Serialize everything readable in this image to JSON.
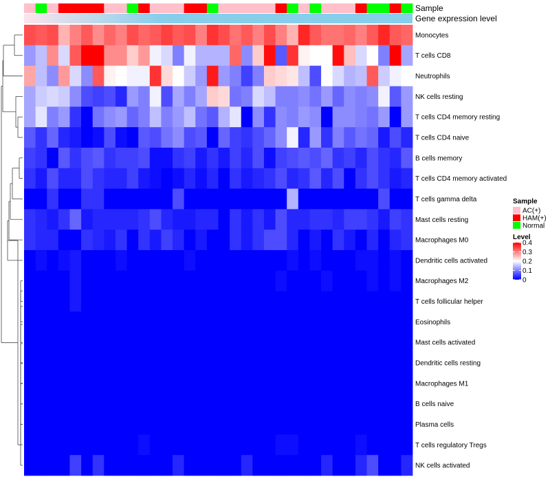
{
  "chart_data": {
    "type": "heatmap",
    "title": "",
    "annotation_tracks": [
      {
        "name": "Sample",
        "values": [
          "AC(+)",
          "Normal",
          "AC(+)",
          "HAM(+)",
          "HAM(+)",
          "HAM(+)",
          "HAM(+)",
          "AC(+)",
          "AC(+)",
          "Normal",
          "HAM(+)",
          "AC(+)",
          "AC(+)",
          "AC(+)",
          "HAM(+)",
          "HAM(+)",
          "Normal",
          "AC(+)",
          "AC(+)",
          "AC(+)",
          "AC(+)",
          "AC(+)",
          "HAM(+)",
          "Normal",
          "AC(+)",
          "Normal",
          "AC(+)",
          "AC(+)",
          "AC(+)",
          "HAM(+)",
          "Normal",
          "Normal",
          "HAM(+)",
          "Normal"
        ]
      },
      {
        "name": "Gene expression level",
        "gradient": [
          "#fce4ec",
          "#87ceeb"
        ]
      }
    ],
    "rows": [
      "Monocytes",
      "T cells CD8",
      "Neutrophils",
      "NK cells resting",
      "T cells CD4 memory resting",
      "T cells CD4 naive",
      "B cells memory",
      "T cells CD4 memory activated",
      "T cells gamma delta",
      "Mast cells resting",
      "Macrophages M0",
      "Dendritic cells activated",
      "Macrophages M2",
      "T cells follicular helper",
      "Eosinophils",
      "Mast cells activated",
      "Dendritic cells resting",
      "Macrophages M1",
      "B cells naive",
      "Plasma cells",
      "T cells regulatory  Tregs",
      "NK cells activated"
    ],
    "values": [
      [
        0.34,
        0.33,
        0.34,
        0.26,
        0.3,
        0.33,
        0.29,
        0.32,
        0.3,
        0.34,
        0.32,
        0.33,
        0.35,
        0.33,
        0.34,
        0.3,
        0.36,
        0.34,
        0.31,
        0.33,
        0.3,
        0.34,
        0.3,
        0.26,
        0.37,
        0.33,
        0.31,
        0.31,
        0.32,
        0.3,
        0.33,
        0.37,
        0.33,
        0.32
      ],
      [
        0.12,
        0.15,
        0.29,
        0.17,
        0.33,
        0.4,
        0.4,
        0.29,
        0.29,
        0.24,
        0.28,
        0.19,
        0.17,
        0.1,
        0.19,
        0.14,
        0.14,
        0.14,
        0.32,
        0.11,
        0.24,
        0.39,
        0.07,
        0.36,
        0.21,
        0.2,
        0.2,
        0.39,
        0.25,
        0.17,
        0.2,
        0.1,
        0.4,
        0.13
      ],
      [
        0.27,
        0.15,
        0.11,
        0.28,
        0.17,
        0.11,
        0.33,
        0.21,
        0.2,
        0.19,
        0.19,
        0.36,
        0.23,
        0.2,
        0.16,
        0.12,
        0.38,
        0.12,
        0.1,
        0.05,
        0.1,
        0.24,
        0.23,
        0.22,
        0.15,
        0.06,
        0.2,
        0.17,
        0.14,
        0.15,
        0.33,
        0.16,
        0.19,
        0.2
      ],
      [
        0.13,
        0.16,
        0.17,
        0.16,
        0.11,
        0.06,
        0.05,
        0.06,
        0.03,
        0.12,
        0.1,
        0.19,
        0.06,
        0.13,
        0.1,
        0.13,
        0.24,
        0.23,
        0.09,
        0.1,
        0.17,
        0.15,
        0.1,
        0.1,
        0.11,
        0.09,
        0.12,
        0.08,
        0.11,
        0.1,
        0.11,
        0.19,
        0.07,
        0.12
      ],
      [
        0.13,
        0.18,
        0.1,
        0.12,
        0.04,
        0.0,
        0.09,
        0.11,
        0.12,
        0.08,
        0.1,
        0.15,
        0.1,
        0.12,
        0.15,
        0.09,
        0.07,
        0.14,
        0.18,
        0.0,
        0.11,
        0.04,
        0.11,
        0.1,
        0.12,
        0.11,
        0.0,
        0.11,
        0.11,
        0.1,
        0.09,
        0.12,
        0.0,
        0.12
      ],
      [
        0.07,
        0.04,
        0.08,
        0.03,
        0.02,
        0.0,
        0.01,
        0.06,
        0.01,
        0.0,
        0.07,
        0.06,
        0.09,
        0.11,
        0.06,
        0.07,
        0.0,
        0.08,
        0.05,
        0.04,
        0.06,
        0.08,
        0.11,
        0.19,
        0.03,
        0.12,
        0.04,
        0.1,
        0.07,
        0.09,
        0.08,
        0.02,
        0.06,
        0.03
      ],
      [
        0.05,
        0.04,
        0.0,
        0.07,
        0.04,
        0.06,
        0.07,
        0.04,
        0.05,
        0.05,
        0.06,
        0.01,
        0.01,
        0.04,
        0.05,
        0.02,
        0.04,
        0.02,
        0.05,
        0.03,
        0.06,
        0.01,
        0.05,
        0.06,
        0.07,
        0.06,
        0.08,
        0.04,
        0.05,
        0.03,
        0.06,
        0.04,
        0.03,
        0.07
      ],
      [
        0.04,
        0.02,
        0.06,
        0.03,
        0.03,
        0.06,
        0.04,
        0.03,
        0.03,
        0.05,
        0.02,
        0.01,
        0.0,
        0.01,
        0.03,
        0.01,
        0.03,
        0.0,
        0.04,
        0.02,
        0.03,
        0.04,
        0.06,
        0.03,
        0.04,
        0.07,
        0.03,
        0.06,
        0.0,
        0.04,
        0.06,
        0.04,
        0.02,
        0.03
      ],
      [
        0.0,
        0.0,
        0.04,
        0.0,
        0.0,
        0.04,
        0.04,
        0.0,
        0.0,
        0.0,
        0.0,
        0.0,
        0.0,
        0.06,
        0.0,
        0.0,
        0.0,
        0.0,
        0.0,
        0.0,
        0.0,
        0.0,
        0.0,
        0.14,
        0.0,
        0.0,
        0.0,
        0.0,
        0.0,
        0.0,
        0.0,
        0.06,
        0.0,
        0.0
      ],
      [
        0.04,
        0.03,
        0.02,
        0.04,
        0.08,
        0.02,
        0.03,
        0.03,
        0.03,
        0.03,
        0.04,
        0.06,
        0.03,
        0.02,
        0.02,
        0.03,
        0.03,
        0.0,
        0.04,
        0.02,
        0.04,
        0.02,
        0.06,
        0.03,
        0.03,
        0.04,
        0.04,
        0.03,
        0.05,
        0.05,
        0.04,
        0.02,
        0.05,
        0.04
      ],
      [
        0.04,
        0.03,
        0.03,
        0.0,
        0.0,
        0.04,
        0.03,
        0.02,
        0.04,
        0.0,
        0.04,
        0.02,
        0.05,
        0.03,
        0.0,
        0.02,
        0.0,
        0.0,
        0.04,
        0.02,
        0.04,
        0.06,
        0.06,
        0.03,
        0.0,
        0.02,
        0.0,
        0.04,
        0.02,
        0.0,
        0.03,
        0.0,
        0.03,
        0.04
      ],
      [
        0.0,
        0.01,
        0.0,
        0.01,
        0.02,
        0.0,
        0.0,
        0.0,
        0.01,
        0.0,
        0.0,
        0.0,
        0.0,
        0.0,
        0.01,
        0.0,
        0.0,
        0.0,
        0.0,
        0.0,
        0.0,
        0.0,
        0.0,
        0.01,
        0.0,
        0.01,
        0.0,
        0.0,
        0.0,
        0.01,
        0.01,
        0.0,
        0.01,
        0.0
      ],
      [
        0.0,
        0.0,
        0.0,
        0.0,
        0.02,
        0.0,
        0.0,
        0.0,
        0.0,
        0.0,
        0.0,
        0.0,
        0.0,
        0.0,
        0.0,
        0.0,
        0.0,
        0.0,
        0.0,
        0.0,
        0.0,
        0.0,
        0.01,
        0.0,
        0.0,
        0.0,
        0.01,
        0.0,
        0.0,
        0.0,
        0.01,
        0.0,
        0.01,
        0.0
      ],
      [
        0.0,
        0.0,
        0.0,
        0.0,
        0.02,
        0.0,
        0.0,
        0.0,
        0.0,
        0.0,
        0.0,
        0.0,
        0.0,
        0.0,
        0.0,
        0.0,
        0.0,
        0.0,
        0.0,
        0.0,
        0.0,
        0.0,
        0.0,
        0.0,
        0.0,
        0.0,
        0.0,
        0.0,
        0.0,
        0.0,
        0.0,
        0.0,
        0.0,
        0.0
      ],
      [
        0.0,
        0.0,
        0.0,
        0.0,
        0.0,
        0.0,
        0.0,
        0.0,
        0.0,
        0.0,
        0.0,
        0.0,
        0.0,
        0.0,
        0.0,
        0.0,
        0.0,
        0.0,
        0.0,
        0.0,
        0.0,
        0.0,
        0.0,
        0.0,
        0.0,
        0.0,
        0.0,
        0.0,
        0.0,
        0.0,
        0.0,
        0.0,
        0.0,
        0.0
      ],
      [
        0.0,
        0.0,
        0.0,
        0.0,
        0.0,
        0.0,
        0.0,
        0.0,
        0.0,
        0.0,
        0.0,
        0.0,
        0.0,
        0.0,
        0.0,
        0.0,
        0.0,
        0.0,
        0.0,
        0.0,
        0.0,
        0.0,
        0.0,
        0.0,
        0.0,
        0.0,
        0.0,
        0.0,
        0.0,
        0.0,
        0.0,
        0.0,
        0.0,
        0.0
      ],
      [
        0.0,
        0.0,
        0.0,
        0.0,
        0.0,
        0.0,
        0.0,
        0.0,
        0.0,
        0.0,
        0.0,
        0.0,
        0.0,
        0.0,
        0.0,
        0.0,
        0.0,
        0.0,
        0.0,
        0.0,
        0.0,
        0.0,
        0.0,
        0.0,
        0.0,
        0.0,
        0.0,
        0.0,
        0.0,
        0.0,
        0.0,
        0.0,
        0.0,
        0.0
      ],
      [
        0.0,
        0.0,
        0.0,
        0.0,
        0.0,
        0.0,
        0.0,
        0.0,
        0.0,
        0.0,
        0.0,
        0.0,
        0.0,
        0.0,
        0.0,
        0.0,
        0.0,
        0.0,
        0.0,
        0.0,
        0.0,
        0.0,
        0.0,
        0.0,
        0.0,
        0.0,
        0.0,
        0.0,
        0.0,
        0.0,
        0.0,
        0.0,
        0.0,
        0.0
      ],
      [
        0.0,
        0.0,
        0.0,
        0.0,
        0.0,
        0.0,
        0.0,
        0.0,
        0.0,
        0.0,
        0.0,
        0.0,
        0.0,
        0.0,
        0.0,
        0.0,
        0.0,
        0.0,
        0.0,
        0.0,
        0.0,
        0.0,
        0.0,
        0.0,
        0.0,
        0.0,
        0.0,
        0.0,
        0.0,
        0.0,
        0.0,
        0.0,
        0.0,
        0.0
      ],
      [
        0.0,
        0.0,
        0.0,
        0.0,
        0.0,
        0.0,
        0.0,
        0.0,
        0.0,
        0.0,
        0.0,
        0.0,
        0.0,
        0.0,
        0.0,
        0.0,
        0.0,
        0.0,
        0.0,
        0.0,
        0.0,
        0.0,
        0.0,
        0.0,
        0.0,
        0.0,
        0.0,
        0.0,
        0.0,
        0.0,
        0.0,
        0.0,
        0.0,
        0.0
      ],
      [
        0.0,
        0.0,
        0.0,
        0.0,
        0.0,
        0.0,
        0.0,
        0.0,
        0.0,
        0.0,
        0.01,
        0.0,
        0.0,
        0.0,
        0.0,
        0.0,
        0.0,
        0.0,
        0.0,
        0.0,
        0.0,
        0.0,
        0.01,
        0.01,
        0.0,
        0.0,
        0.0,
        0.0,
        0.0,
        0.01,
        0.0,
        0.0,
        0.0,
        0.0
      ],
      [
        0.0,
        0.0,
        0.0,
        0.0,
        0.05,
        0.0,
        0.04,
        0.0,
        0.0,
        0.0,
        0.0,
        0.0,
        0.0,
        0.03,
        0.0,
        0.0,
        0.0,
        0.0,
        0.0,
        0.03,
        0.0,
        0.0,
        0.0,
        0.0,
        0.0,
        0.0,
        0.03,
        0.0,
        0.0,
        0.03,
        0.06,
        0.0,
        0.0,
        0.03
      ]
    ],
    "legend": {
      "sample": {
        "title": "Sample",
        "items": [
          {
            "label": "AC(+)",
            "color": "#ffc0cb"
          },
          {
            "label": "HAM(+)",
            "color": "#ff0000"
          },
          {
            "label": "Normal",
            "color": "#00ff00"
          }
        ]
      },
      "level": {
        "title": "Level",
        "ticks": [
          "0.4",
          "0.3",
          "0.2",
          "0.1",
          "0"
        ],
        "range": [
          0,
          0.4
        ],
        "colors": {
          "low": "#0000ff",
          "mid": "#ffffff",
          "high": "#ff0000"
        }
      }
    }
  }
}
